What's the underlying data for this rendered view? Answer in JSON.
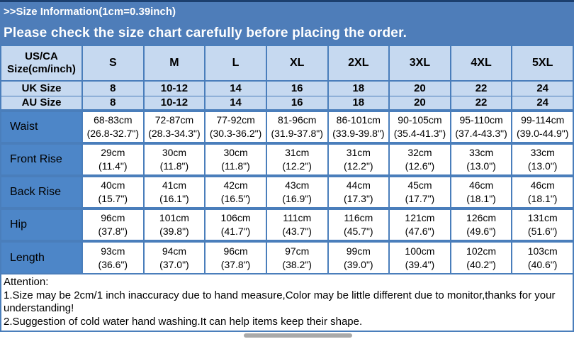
{
  "header": {
    "title": ">>Size Information(1cm=0.39inch)",
    "subtitle": "Please check the size chart carefully before placing the order."
  },
  "table": {
    "corner_header": "US/CA Size(cm/inch)",
    "size_columns": [
      "S",
      "M",
      "L",
      "XL",
      "2XL",
      "3XL",
      "4XL",
      "5XL"
    ],
    "size_rows": [
      {
        "label": "UK Size",
        "values": [
          "8",
          "10-12",
          "14",
          "16",
          "18",
          "20",
          "22",
          "24"
        ]
      },
      {
        "label": "AU Size",
        "values": [
          "8",
          "10-12",
          "14",
          "16",
          "18",
          "20",
          "22",
          "24"
        ]
      }
    ],
    "measurement_rows": [
      {
        "label": "Waist",
        "cells": [
          [
            "68-83cm",
            "(26.8-32.7\")"
          ],
          [
            "72-87cm",
            "(28.3-34.3\")"
          ],
          [
            "77-92cm",
            "(30.3-36.2\")"
          ],
          [
            "81-96cm",
            "(31.9-37.8\")"
          ],
          [
            "86-101cm",
            "(33.9-39.8\")"
          ],
          [
            "90-105cm",
            "(35.4-41.3\")"
          ],
          [
            "95-110cm",
            "(37.4-43.3\")"
          ],
          [
            "99-114cm",
            "(39.0-44.9\")"
          ]
        ]
      },
      {
        "label": "Front Rise",
        "cells": [
          [
            "29cm",
            "(11.4\")"
          ],
          [
            "30cm",
            "(11.8\")"
          ],
          [
            "30cm",
            "(11.8\")"
          ],
          [
            "31cm",
            "(12.2\")"
          ],
          [
            "31cm",
            "(12.2\")"
          ],
          [
            "32cm",
            "(12.6\")"
          ],
          [
            "33cm",
            "(13.0\")"
          ],
          [
            "33cm",
            "(13.0\")"
          ]
        ]
      },
      {
        "label": "Back Rise",
        "cells": [
          [
            "40cm",
            "(15.7\")"
          ],
          [
            "41cm",
            "(16.1\")"
          ],
          [
            "42cm",
            "(16.5\")"
          ],
          [
            "43cm",
            "(16.9\")"
          ],
          [
            "44cm",
            "(17.3\")"
          ],
          [
            "45cm",
            "(17.7\")"
          ],
          [
            "46cm",
            "(18.1\")"
          ],
          [
            "46cm",
            "(18.1\")"
          ]
        ]
      },
      {
        "label": "Hip",
        "cells": [
          [
            "96cm",
            "(37.8\")"
          ],
          [
            "101cm",
            "(39.8\")"
          ],
          [
            "106cm",
            "(41.7\")"
          ],
          [
            "111cm",
            "(43.7\")"
          ],
          [
            "116cm",
            "(45.7\")"
          ],
          [
            "121cm",
            "(47.6\")"
          ],
          [
            "126cm",
            "(49.6\")"
          ],
          [
            "131cm",
            "(51.6\")"
          ]
        ]
      },
      {
        "label": "Length",
        "cells": [
          [
            "93cm",
            "(36.6\")"
          ],
          [
            "94cm",
            "(37.0\")"
          ],
          [
            "96cm",
            "(37.8\")"
          ],
          [
            "97cm",
            "(38.2\")"
          ],
          [
            "99cm",
            "(39.0\")"
          ],
          [
            "100cm",
            "(39.4\")"
          ],
          [
            "102cm",
            "(40.2\")"
          ],
          [
            "103cm",
            "(40.6\")"
          ]
        ]
      }
    ]
  },
  "notes": {
    "attention_label": "Attention:",
    "lines": [
      "1.Size may be 2cm/1 inch inaccuracy due to hand measure,Color may be little different due to monitor,thanks for your understanding!",
      "2.Suggestion of cold water hand washing.It can help items keep their shape."
    ]
  },
  "colors": {
    "accent": "#4e7db9",
    "label-blue": "#4d86c8",
    "cell-light": "#c6d9f0",
    "border-blue": "#4a7ebb",
    "top-edge": "#1c3f6e",
    "scrollbar-grey": "#a9a9a9"
  }
}
